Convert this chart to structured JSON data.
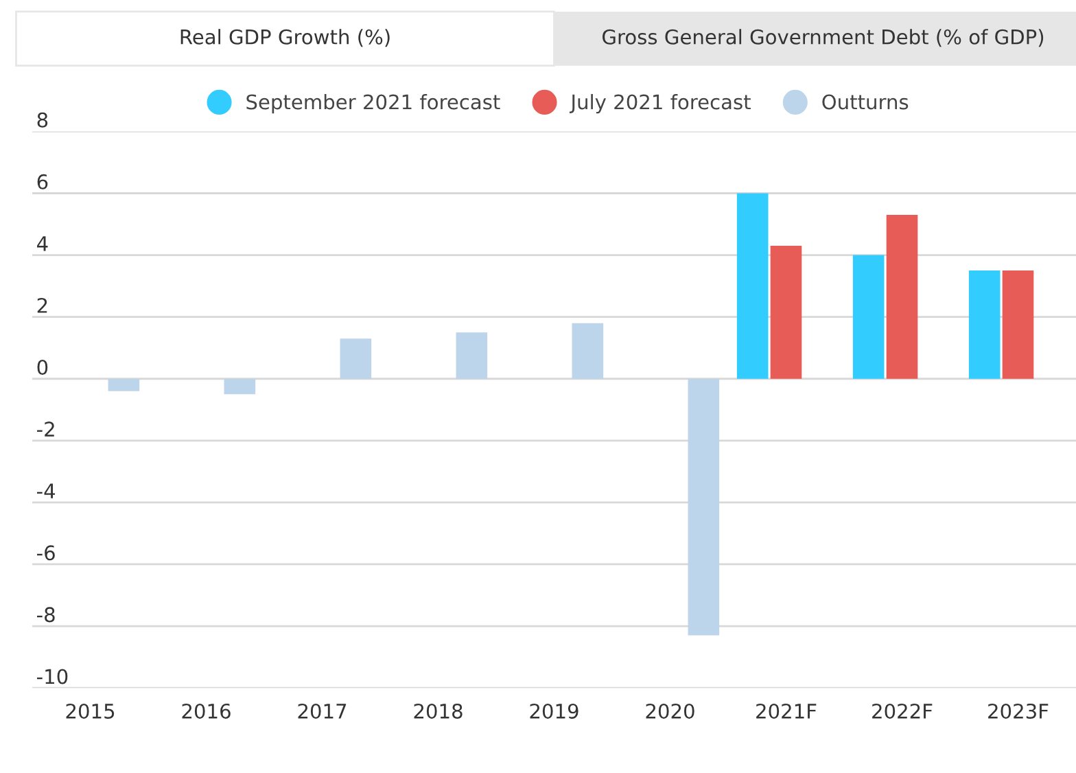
{
  "chart_data": {
    "type": "bar",
    "title": "Real GDP Growth (%)",
    "annotations": [
      "Gross General Government Debt (% of GDP)"
    ],
    "categories": [
      "2015",
      "2016",
      "2017",
      "2018",
      "2019",
      "2020",
      "2021F",
      "2022F",
      "2023F"
    ],
    "series": [
      {
        "name": "September 2021 forecast",
        "color": "#33ccff",
        "values": [
          null,
          null,
          null,
          null,
          null,
          null,
          6.0,
          4.0,
          3.5
        ]
      },
      {
        "name": "July 2021 forecast",
        "color": "#e85c57",
        "values": [
          null,
          null,
          null,
          null,
          null,
          null,
          4.3,
          5.3,
          3.5
        ]
      },
      {
        "name": "Outturns",
        "color": "#bdd5ea",
        "values": [
          -0.4,
          -0.5,
          1.3,
          1.5,
          1.8,
          -8.3,
          null,
          null,
          null
        ]
      }
    ],
    "ylim": [
      -10,
      8
    ],
    "yticks": [
      -10,
      -8,
      -6,
      -4,
      -2,
      0,
      2,
      4,
      6,
      8
    ],
    "grid": "y",
    "legend": "top"
  }
}
